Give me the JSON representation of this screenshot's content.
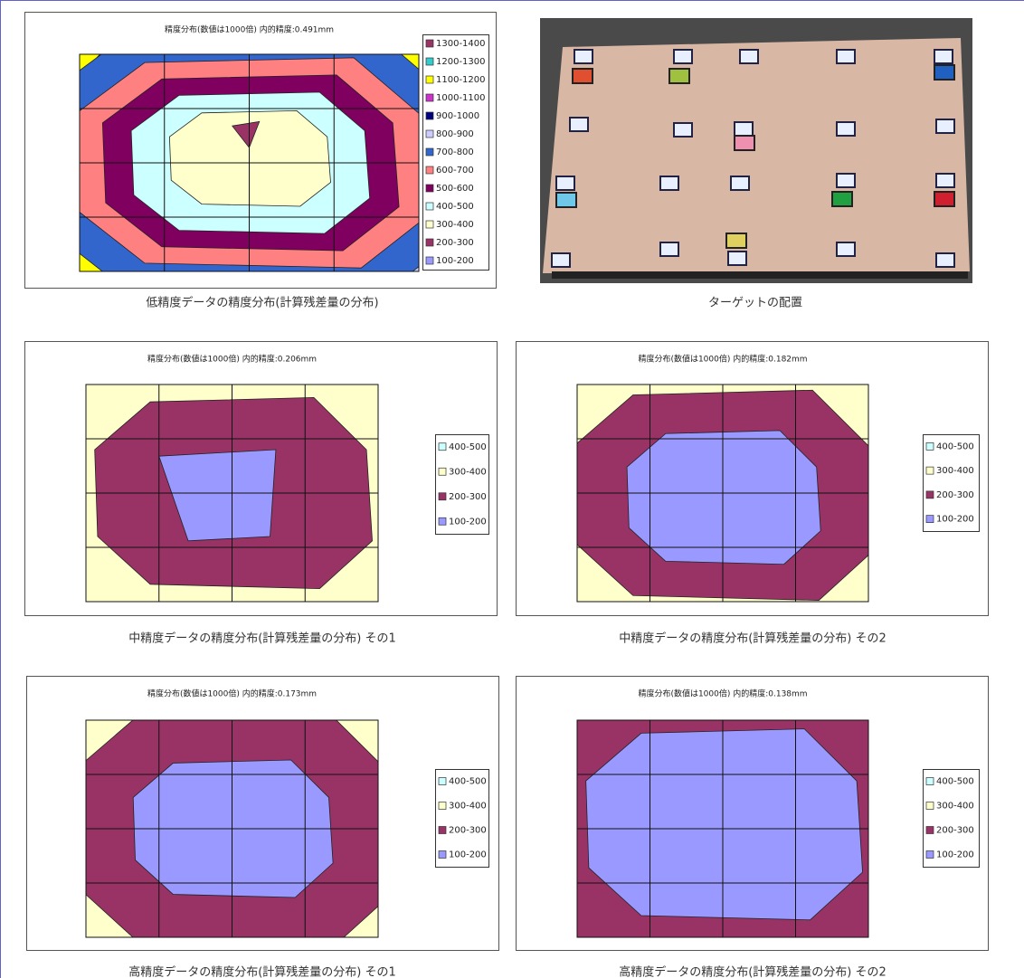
{
  "panels": [
    {
      "title": "精度分布(数値は1000倍) 内的精度:0.491mm",
      "legend": [
        "1300-1400",
        "1200-1300",
        "1100-1200",
        "1000-1100",
        "900-1000",
        "800-900",
        "700-800",
        "600-700",
        "500-600",
        "400-500",
        "300-400",
        "200-300",
        "100-200"
      ],
      "caption": "低精度データの精度分布(計算残差量の分布)"
    },
    {
      "caption": "ターゲットの配置"
    },
    {
      "title": "精度分布(数値は1000倍) 内的精度:0.206mm",
      "legend": [
        "400-500",
        "300-400",
        "200-300",
        "100-200"
      ],
      "caption": "中精度データの精度分布(計算残差量の分布) その1"
    },
    {
      "title": "精度分布(数値は1000倍) 内的精度:0.182mm",
      "legend": [
        "400-500",
        "300-400",
        "200-300",
        "100-200"
      ],
      "caption": "中精度データの精度分布(計算残差量の分布) その2"
    },
    {
      "title": "精度分布(数値は1000倍) 内的精度:0.173mm",
      "legend": [
        "400-500",
        "300-400",
        "200-300",
        "100-200"
      ],
      "caption": "高精度データの精度分布(計算残差量の分布) その1"
    },
    {
      "title": "精度分布(数値は1000倍) 内的精度:0.138mm",
      "legend": [
        "400-500",
        "300-400",
        "200-300",
        "100-200"
      ],
      "caption": "高精度データの精度分布(計算残差量の分布) その2"
    }
  ]
}
